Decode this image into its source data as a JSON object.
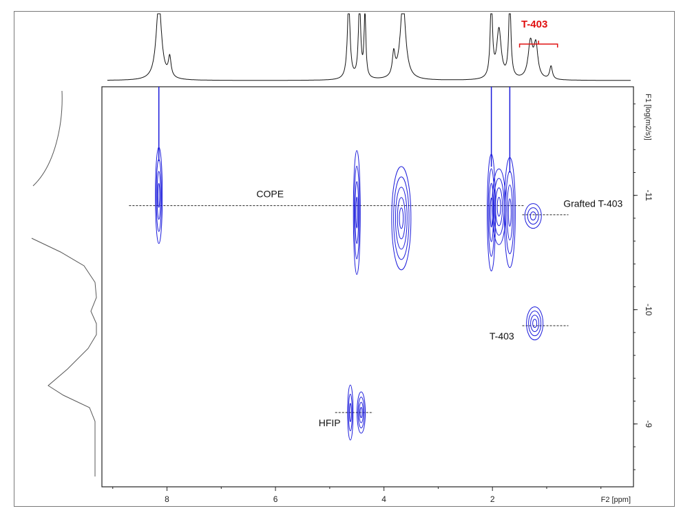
{
  "chart_data": {
    "type": "scatter",
    "title": "",
    "xlabel": "F2 [ppm]",
    "ylabel": "F1 [log(m2/s)]",
    "xlim": [
      9.2,
      -0.6
    ],
    "ylim": [
      -11.95,
      -8.45
    ],
    "x_ticks": [
      "8",
      "6",
      "4",
      "2"
    ],
    "x_tick_values": [
      8,
      6,
      4,
      2
    ],
    "y_ticks": [
      "-11",
      "-10",
      "-9"
    ],
    "y_tick_values": [
      -11,
      -10,
      -9
    ],
    "grid": false,
    "contour_color": "#1a1adb",
    "series": [
      {
        "values": [
          {
            "x": 8.15,
            "y": -11.0
          },
          {
            "x": 4.5,
            "y": -10.85
          },
          {
            "x": 3.68,
            "y": -10.8
          },
          {
            "x": 2.02,
            "y": -10.85
          },
          {
            "x": 1.88,
            "y": -10.9
          },
          {
            "x": 1.68,
            "y": -10.85
          },
          {
            "x": 1.25,
            "y": -10.82
          },
          {
            "x": 1.22,
            "y": -9.88
          },
          {
            "x": 4.62,
            "y": -9.1
          },
          {
            "x": 4.42,
            "y": -9.1
          }
        ]
      }
    ],
    "reference_lines": [
      {
        "label": "COPE",
        "y": -10.91,
        "x_from": 8.7,
        "x_to": 1.4
      },
      {
        "label": "Grafted T-403",
        "y": -10.83,
        "x_from": 1.45,
        "x_to": 0.6
      },
      {
        "label": "T-403",
        "y": -9.86,
        "x_from": 1.45,
        "x_to": 0.6
      },
      {
        "label": "HFIP",
        "y": -9.1,
        "x_from": 4.9,
        "x_to": 4.2
      }
    ],
    "proton_bracket": {
      "label": "T-403",
      "x_from": 1.5,
      "x_to": 0.8
    }
  }
}
